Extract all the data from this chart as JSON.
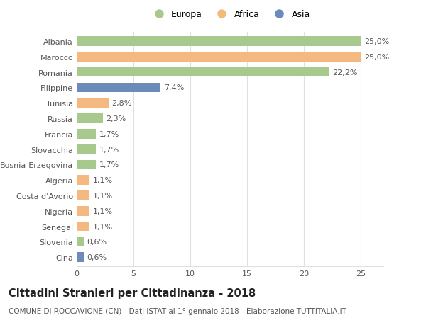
{
  "categories": [
    "Albania",
    "Marocco",
    "Romania",
    "Filippine",
    "Tunisia",
    "Russia",
    "Francia",
    "Slovacchia",
    "Bosnia-Erzegovina",
    "Algeria",
    "Costa d'Avorio",
    "Nigeria",
    "Senegal",
    "Slovenia",
    "Cina"
  ],
  "values": [
    25.0,
    25.0,
    22.2,
    7.4,
    2.8,
    2.3,
    1.7,
    1.7,
    1.7,
    1.1,
    1.1,
    1.1,
    1.1,
    0.6,
    0.6
  ],
  "labels": [
    "25,0%",
    "25,0%",
    "22,2%",
    "7,4%",
    "2,8%",
    "2,3%",
    "1,7%",
    "1,7%",
    "1,7%",
    "1,1%",
    "1,1%",
    "1,1%",
    "1,1%",
    "0,6%",
    "0,6%"
  ],
  "continents": [
    "Europa",
    "Africa",
    "Europa",
    "Asia",
    "Africa",
    "Europa",
    "Europa",
    "Europa",
    "Europa",
    "Africa",
    "Africa",
    "Africa",
    "Africa",
    "Europa",
    "Asia"
  ],
  "colors": {
    "Europa": "#a8c98e",
    "Africa": "#f5b97f",
    "Asia": "#6b8cba"
  },
  "legend_labels": [
    "Europa",
    "Africa",
    "Asia"
  ],
  "xlim": [
    0,
    27
  ],
  "xticks": [
    0,
    5,
    10,
    15,
    20,
    25
  ],
  "title": "Cittadini Stranieri per Cittadinanza - 2018",
  "subtitle": "COMUNE DI ROCCAVIONE (CN) - Dati ISTAT al 1° gennaio 2018 - Elaborazione TUTTITALIA.IT",
  "background_color": "#ffffff",
  "grid_color": "#e0e0e0",
  "bar_height": 0.62,
  "title_fontsize": 10.5,
  "subtitle_fontsize": 7.5,
  "label_fontsize": 8,
  "tick_fontsize": 8,
  "legend_fontsize": 9
}
